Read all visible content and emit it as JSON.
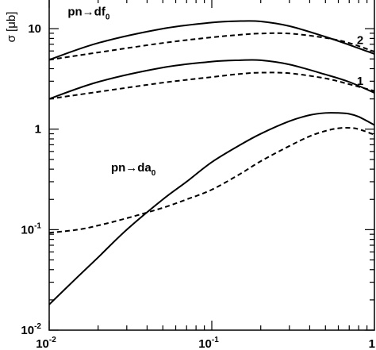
{
  "chart_data": {
    "type": "line",
    "title": "",
    "xlabel": "",
    "ylabel": "σ [μb]",
    "xscale": "log",
    "yscale": "log",
    "xlim": [
      0.01,
      1
    ],
    "ylim": [
      0.01,
      20
    ],
    "grid": false,
    "x_ticks": [
      {
        "base": "10",
        "exp": "-2",
        "value": 0.01
      },
      {
        "base": "10",
        "exp": "-1",
        "value": 0.1
      },
      {
        "base": "1",
        "exp": "",
        "value": 1
      }
    ],
    "y_ticks": [
      {
        "base": "10",
        "exp": "-2",
        "value": 0.01
      },
      {
        "base": "10",
        "exp": "-1",
        "value": 0.1
      },
      {
        "base": "1",
        "exp": "",
        "value": 1
      },
      {
        "base": "10",
        "exp": "",
        "value": 10
      }
    ],
    "annotations": [
      {
        "main": "pn→df",
        "sub": "0",
        "x": 0.013,
        "y": 13.5
      },
      {
        "main": "pn→da",
        "sub": "0",
        "x": 0.024,
        "y": 0.38
      },
      {
        "main": "2",
        "sub": "",
        "x": 0.78,
        "y": 7.0
      },
      {
        "main": "1",
        "sub": "",
        "x": 0.78,
        "y": 2.75
      }
    ],
    "series": [
      {
        "group": "pn→df0 curve 2",
        "style": "solid",
        "x": [
          0.01,
          0.02,
          0.05,
          0.1,
          0.15,
          0.2,
          0.3,
          0.5,
          0.7,
          1.0
        ],
        "y": [
          4.9,
          7.2,
          10.0,
          11.5,
          11.9,
          11.8,
          10.6,
          8.3,
          6.9,
          5.6
        ]
      },
      {
        "group": "pn→df0 curve 2",
        "style": "dashed",
        "x": [
          0.01,
          0.02,
          0.05,
          0.1,
          0.15,
          0.2,
          0.3,
          0.5,
          0.7,
          1.0
        ],
        "y": [
          4.9,
          5.8,
          7.2,
          8.2,
          8.7,
          8.95,
          8.95,
          8.1,
          7.2,
          5.9
        ]
      },
      {
        "group": "pn→df0 curve 1",
        "style": "solid",
        "x": [
          0.01,
          0.02,
          0.05,
          0.1,
          0.15,
          0.2,
          0.3,
          0.5,
          0.7,
          1.0
        ],
        "y": [
          2.0,
          2.95,
          4.1,
          4.7,
          4.85,
          4.85,
          4.4,
          3.5,
          2.95,
          2.3
        ]
      },
      {
        "group": "pn→df0 curve 1",
        "style": "dashed",
        "x": [
          0.01,
          0.02,
          0.05,
          0.1,
          0.15,
          0.2,
          0.3,
          0.5,
          0.7,
          1.0
        ],
        "y": [
          2.0,
          2.35,
          2.9,
          3.3,
          3.55,
          3.65,
          3.6,
          3.2,
          2.8,
          2.4
        ]
      },
      {
        "group": "pn→da0",
        "style": "solid",
        "x": [
          0.01,
          0.015,
          0.02,
          0.03,
          0.05,
          0.07,
          0.1,
          0.15,
          0.2,
          0.3,
          0.4,
          0.5,
          0.6,
          0.7,
          0.8,
          1.0
        ],
        "y": [
          0.018,
          0.034,
          0.053,
          0.1,
          0.2,
          0.3,
          0.47,
          0.7,
          0.9,
          1.2,
          1.38,
          1.45,
          1.45,
          1.42,
          1.33,
          1.1
        ]
      },
      {
        "group": "pn→da0",
        "style": "dashed",
        "x": [
          0.01,
          0.015,
          0.02,
          0.03,
          0.05,
          0.07,
          0.1,
          0.15,
          0.2,
          0.3,
          0.4,
          0.5,
          0.6,
          0.7,
          0.8,
          1.0
        ],
        "y": [
          0.093,
          0.1,
          0.11,
          0.13,
          0.165,
          0.2,
          0.25,
          0.36,
          0.48,
          0.68,
          0.85,
          0.96,
          1.02,
          1.03,
          1.0,
          0.88
        ]
      }
    ]
  }
}
